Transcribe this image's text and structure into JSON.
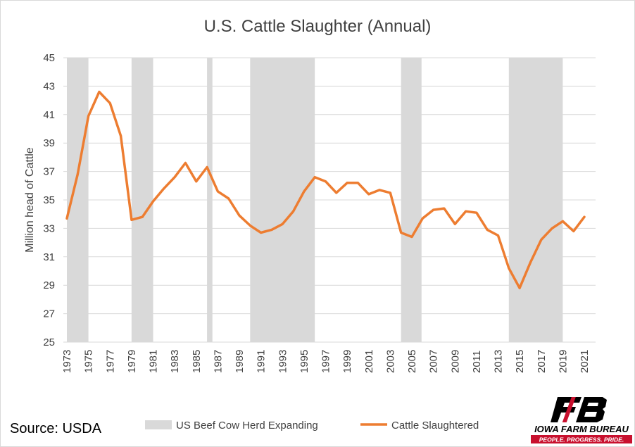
{
  "chart_data": {
    "type": "line",
    "title": "U.S. Cattle Slaughter (Annual)",
    "ylabel": "Million head of Cattle",
    "xlabel": "",
    "ylim": [
      25,
      45
    ],
    "yticks": [
      25,
      27,
      29,
      31,
      33,
      35,
      37,
      39,
      41,
      43,
      45
    ],
    "xlim": [
      1973,
      2021
    ],
    "xticks": [
      1973,
      1975,
      1977,
      1979,
      1981,
      1983,
      1985,
      1987,
      1989,
      1991,
      1993,
      1995,
      1997,
      1999,
      2001,
      2003,
      2005,
      2007,
      2009,
      2011,
      2013,
      2015,
      2017,
      2019,
      2021
    ],
    "grid": true,
    "legend_position": "bottom",
    "series": [
      {
        "name": "Cattle Slaughtered",
        "color": "#ed7d31",
        "x": [
          1973,
          1974,
          1975,
          1976,
          1977,
          1978,
          1979,
          1980,
          1981,
          1982,
          1983,
          1984,
          1985,
          1986,
          1987,
          1988,
          1989,
          1990,
          1991,
          1992,
          1993,
          1994,
          1995,
          1996,
          1997,
          1998,
          1999,
          2000,
          2001,
          2002,
          2003,
          2004,
          2005,
          2006,
          2007,
          2008,
          2009,
          2010,
          2011,
          2012,
          2013,
          2014,
          2015,
          2016,
          2017,
          2018,
          2019,
          2020,
          2021
        ],
        "values": [
          33.7,
          36.8,
          40.9,
          42.6,
          41.8,
          39.5,
          33.6,
          33.8,
          34.9,
          35.8,
          36.6,
          37.6,
          36.3,
          37.3,
          35.6,
          35.1,
          33.9,
          33.2,
          32.7,
          32.9,
          33.3,
          34.2,
          35.6,
          36.6,
          36.3,
          35.5,
          36.2,
          36.2,
          35.4,
          35.7,
          35.5,
          32.7,
          32.4,
          33.7,
          34.3,
          34.4,
          33.3,
          34.2,
          34.1,
          32.9,
          32.5,
          30.2,
          28.8,
          30.6,
          32.2,
          33.0,
          33.5,
          32.8,
          33.8
        ]
      }
    ],
    "shaded_periods": {
      "name": "US Beef Cow Herd Expanding",
      "color": "#d9d9d9",
      "ranges": [
        [
          1973,
          1975
        ],
        [
          1979,
          1981
        ],
        [
          1986,
          1986.5
        ],
        [
          1990,
          1996
        ],
        [
          2004,
          2005.9
        ],
        [
          2014,
          2019
        ]
      ]
    }
  },
  "source": "Source: USDA",
  "logo": {
    "icon": "farm-bureau-logo",
    "text": "IOWA FARM BUREAU",
    "tagline": "PEOPLE. PROGRESS. PRIDE.",
    "color": "#c8102e"
  }
}
